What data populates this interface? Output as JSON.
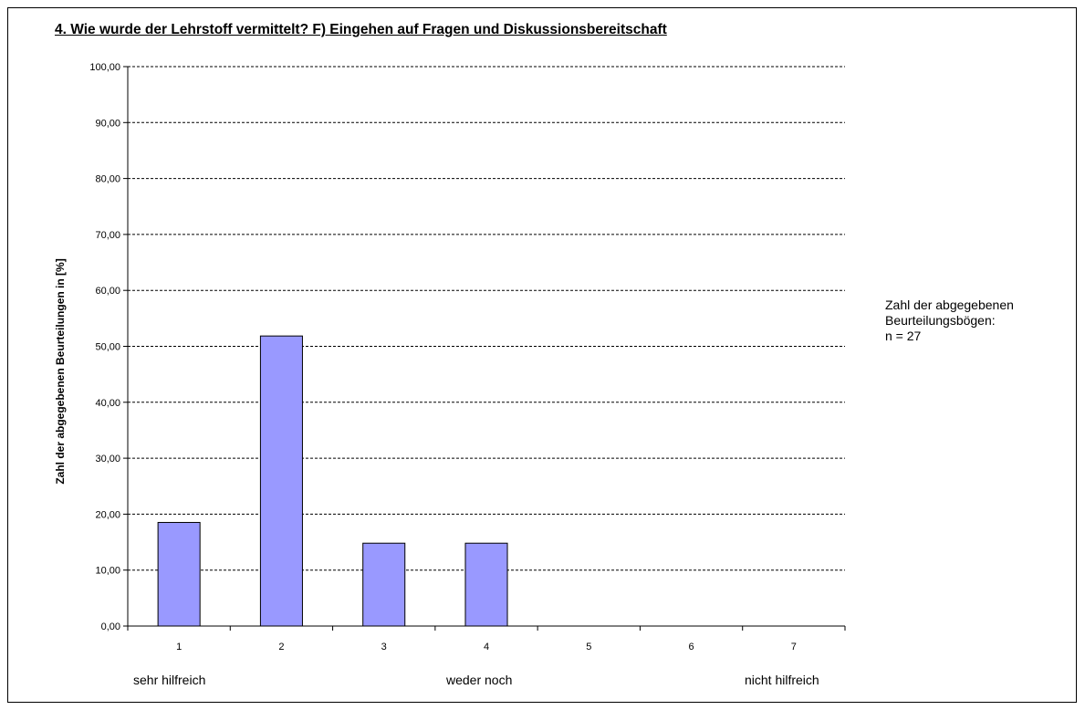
{
  "chart_data": {
    "type": "bar",
    "title": "4. Wie wurde der Lehrstoff vermittelt?    F) Eingehen auf Fragen und Diskussionsbereitschaft",
    "ylabel": "Zahl der abgegebenen Beurteilungen in [%]",
    "xlabel": "",
    "categories": [
      "1",
      "2",
      "3",
      "4",
      "5",
      "6",
      "7"
    ],
    "values": [
      18.52,
      51.85,
      14.81,
      14.81,
      0,
      0,
      0
    ],
    "ylim": [
      0,
      100
    ],
    "yticks": [
      "0,00",
      "10,00",
      "20,00",
      "30,00",
      "40,00",
      "50,00",
      "60,00",
      "70,00",
      "80,00",
      "90,00",
      "100,00"
    ],
    "grid": true,
    "bar_color": "#9999ff",
    "scale_labels": {
      "left": "sehr hilfreich",
      "middle": "weder noch",
      "right": "nicht hilfreich"
    }
  },
  "note": {
    "line1": "Zahl der abgegebenen",
    "line2": "Beurteilungsbögen:",
    "line3": "n = 27"
  }
}
